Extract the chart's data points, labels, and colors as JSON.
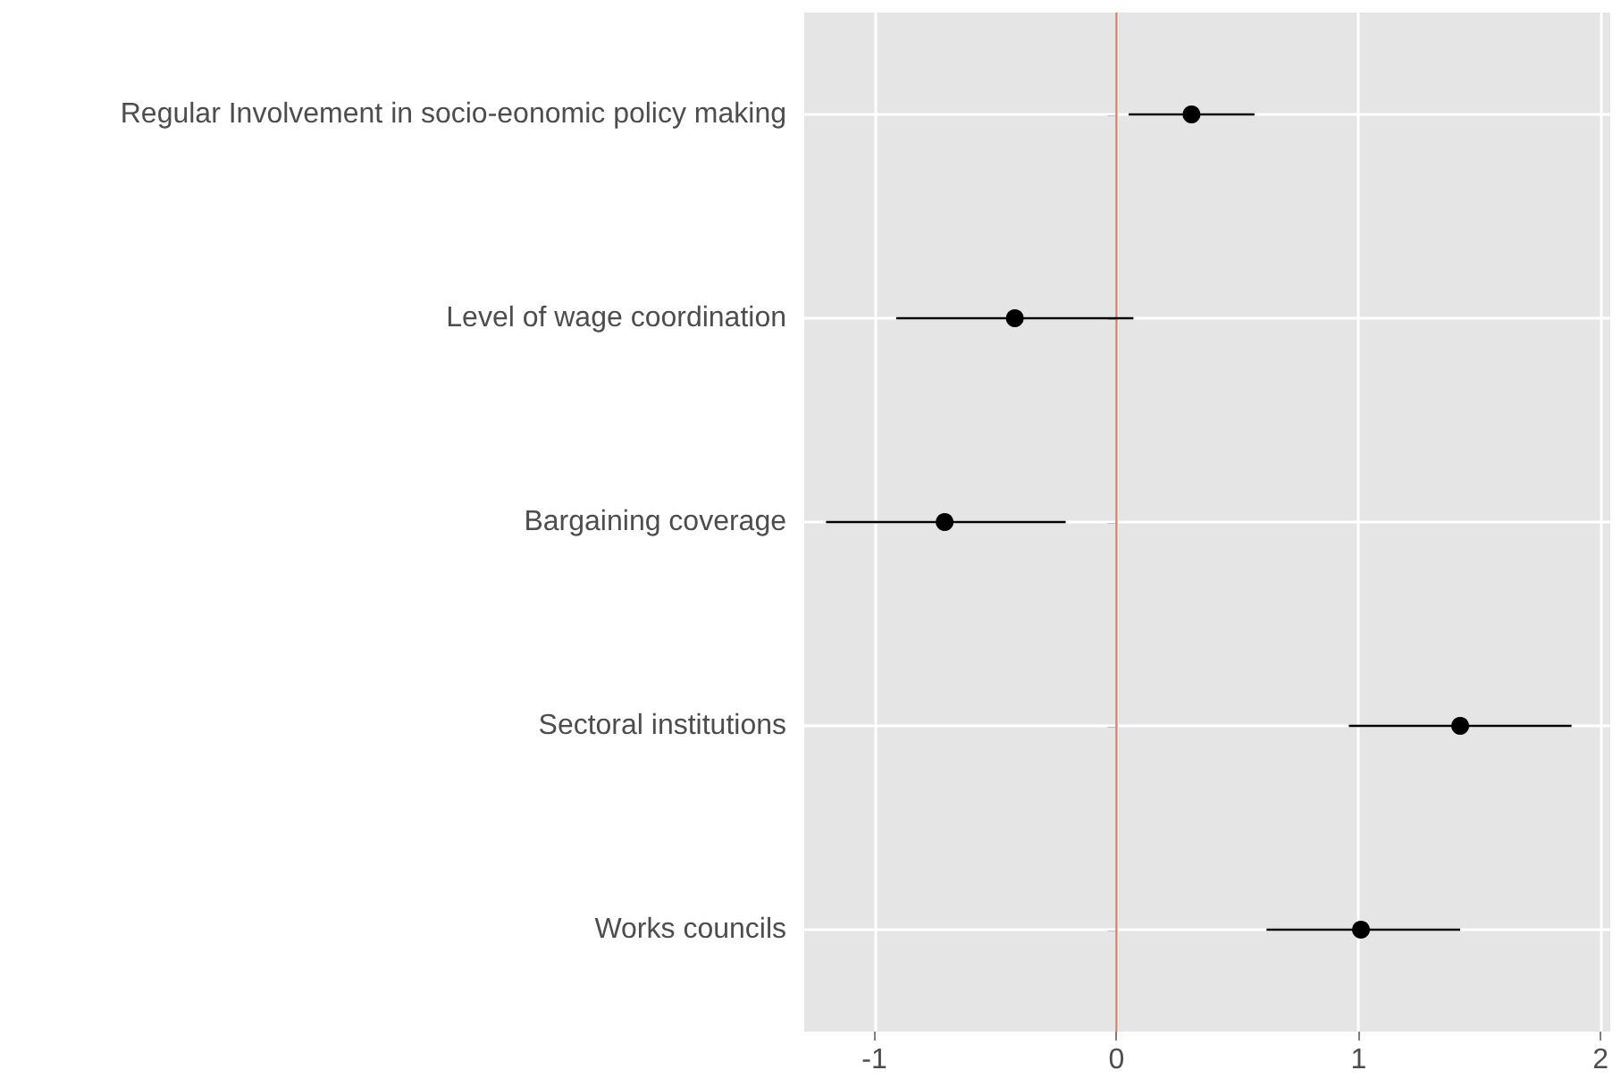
{
  "chart_data": {
    "type": "scatter",
    "orientation": "horizontal",
    "categories": [
      "Regular Involvement in socio-eonomic policy making",
      "Level of wage coordination",
      "Bargaining coverage",
      "Sectoral institutions",
      "Works councils"
    ],
    "values": [
      0.31,
      -0.42,
      -0.71,
      1.42,
      1.01
    ],
    "errors": [
      [
        0.05,
        0.57
      ],
      [
        -0.91,
        0.07
      ],
      [
        -1.2,
        -0.21
      ],
      [
        0.96,
        1.88
      ],
      [
        0.62,
        1.42
      ]
    ],
    "color": "#000000",
    "marker": "circle",
    "xlim": [
      -1.29,
      2.04
    ],
    "xticks": [
      -1,
      0,
      1,
      2
    ],
    "ref_lines": [
      {
        "axis": "x",
        "value": 0,
        "color": "#d9826f"
      }
    ],
    "grid": true
  }
}
